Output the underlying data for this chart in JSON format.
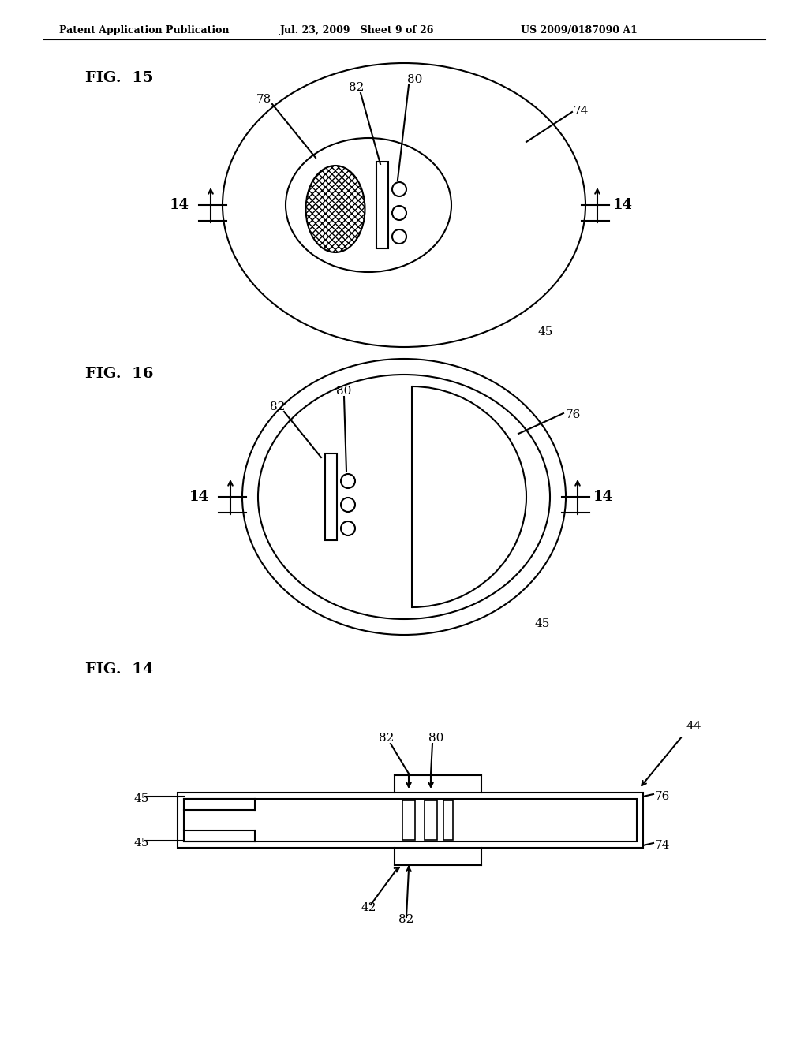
{
  "header_left": "Patent Application Publication",
  "header_mid": "Jul. 23, 2009   Sheet 9 of 26",
  "header_right": "US 2009/0187090 A1",
  "fig15_label": "FIG.  15",
  "fig16_label": "FIG.  16",
  "fig14_label": "FIG.  14",
  "bg_color": "#ffffff",
  "line_color": "#000000"
}
